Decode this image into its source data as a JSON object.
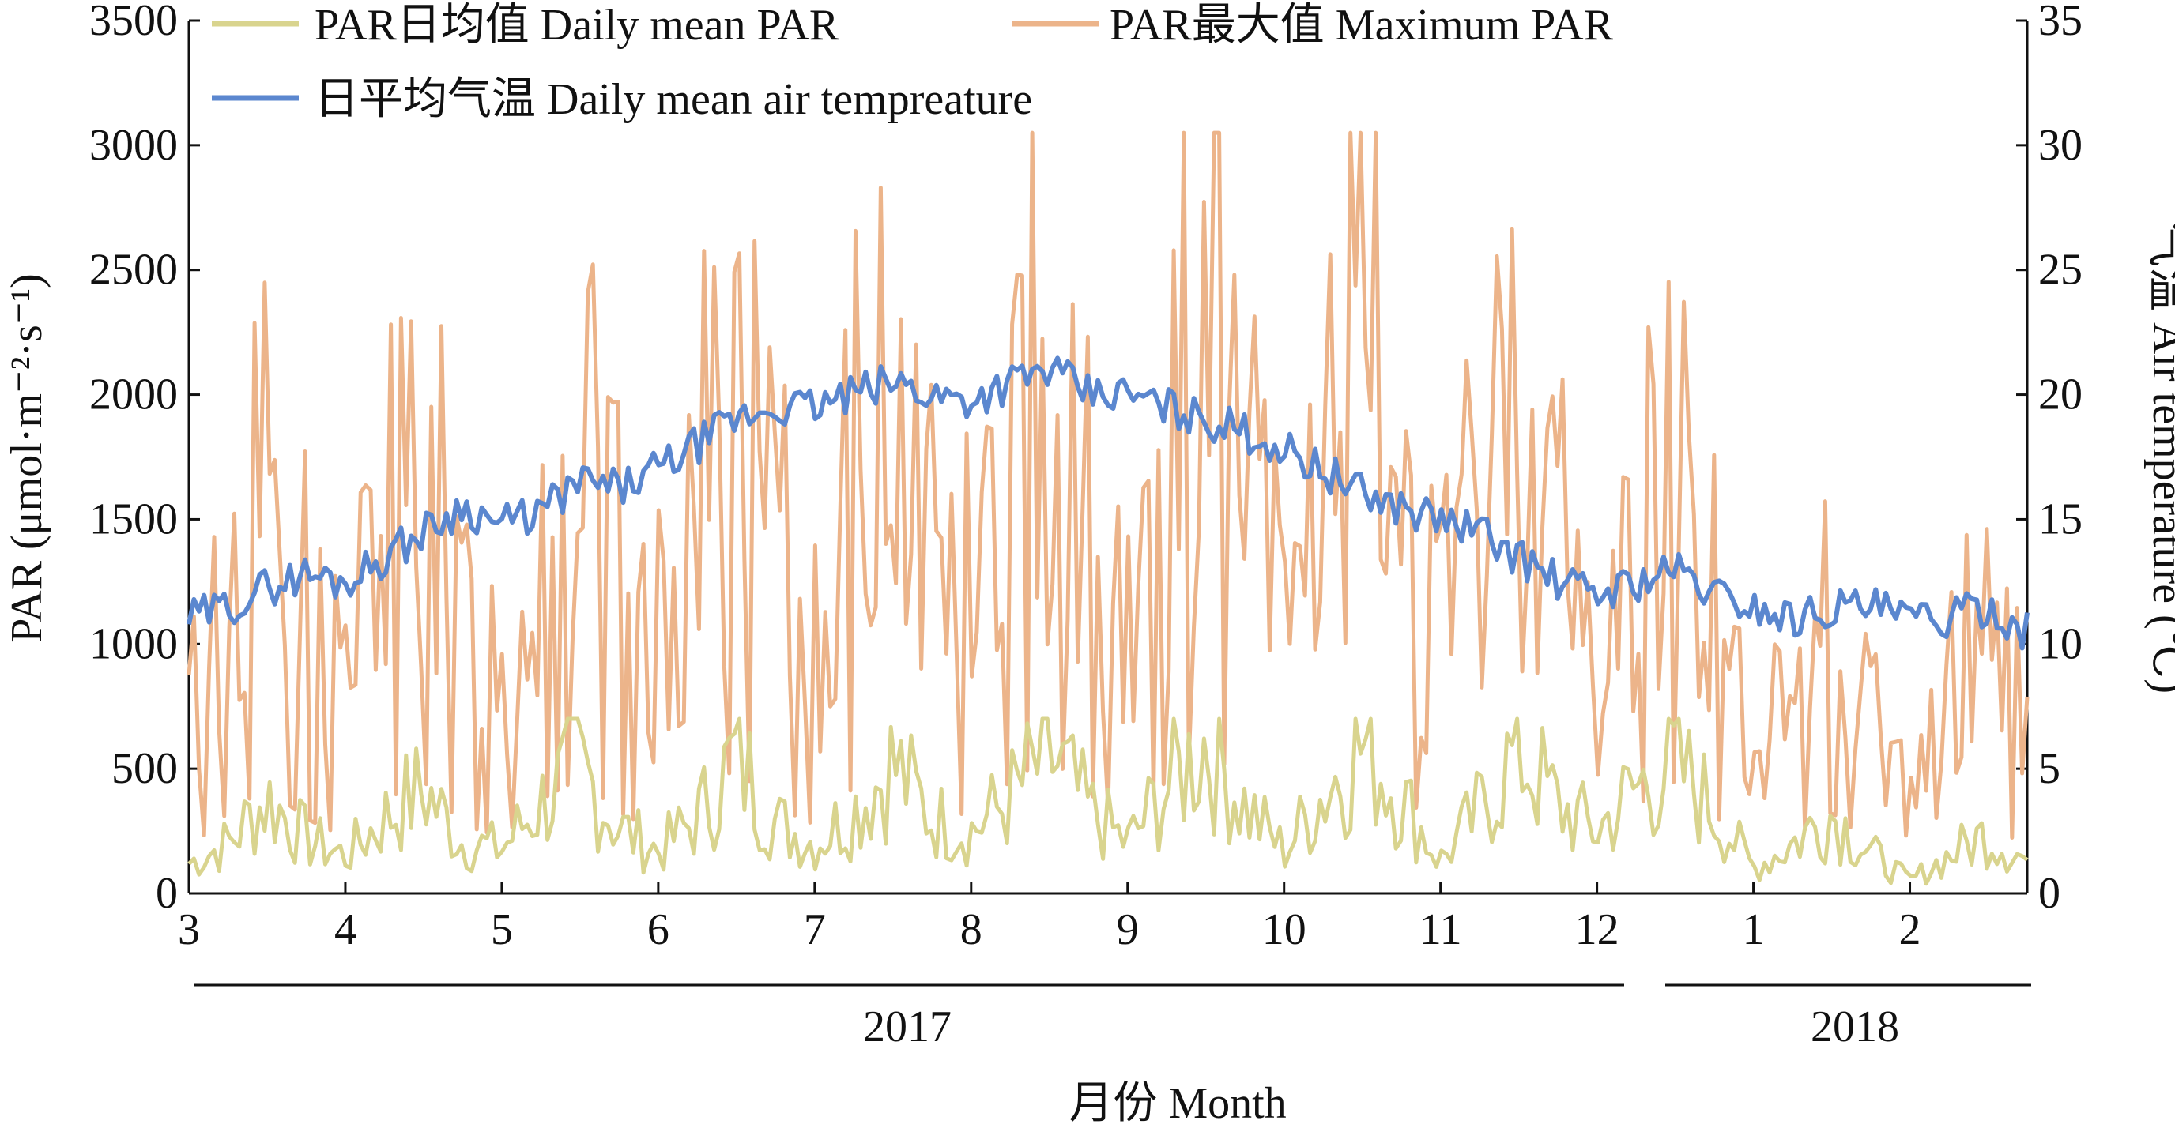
{
  "chart_data": {
    "type": "line",
    "xlabel": "月份 Month",
    "ylabel_left": "PAR (μmol·m⁻²·s⁻¹)",
    "ylabel_right": "气温 Air temperature (℃)",
    "ylim_left": [
      0,
      3500
    ],
    "ylim_right": [
      0,
      35
    ],
    "left_ticks": [
      "0",
      "500",
      "1000",
      "1500",
      "2000",
      "2500",
      "3000",
      "3500"
    ],
    "right_ticks": [
      "0",
      "5",
      "10",
      "15",
      "20",
      "25",
      "30",
      "35"
    ],
    "month_ticks": [
      "3",
      "4",
      "5",
      "6",
      "7",
      "8",
      "9",
      "10",
      "11",
      "12",
      "1",
      "2"
    ],
    "years": [
      "2017",
      "2018"
    ],
    "grid": false,
    "legend_position": "top-left",
    "colors": {
      "daily_mean_par": "#d9d48e",
      "max_par": "#ecb48a",
      "air_temp": "#5b87cf"
    },
    "x_unit": "month index (0 = 1 Mar 2017, 12 = 1 Mar 2018)",
    "series": [
      {
        "name": "PAR日均值 Daily mean PAR",
        "axis": "left",
        "x": [
          0,
          0.25,
          0.5,
          0.75,
          1,
          1.25,
          1.5,
          1.75,
          2,
          2.25,
          2.5,
          2.75,
          3,
          3.25,
          3.5,
          3.75,
          4,
          4.25,
          4.5,
          4.75,
          5,
          5.25,
          5.5,
          5.75,
          6,
          6.25,
          6.5,
          6.75,
          7,
          7.25,
          7.5,
          7.75,
          8,
          8.25,
          8.5,
          8.75,
          9,
          9.25,
          9.5,
          9.75,
          10,
          10.25,
          10.5,
          10.75,
          11,
          11.25,
          11.5,
          11.75
        ],
        "y": [
          120,
          200,
          380,
          220,
          150,
          300,
          420,
          200,
          180,
          360,
          500,
          260,
          170,
          300,
          550,
          280,
          200,
          330,
          520,
          300,
          250,
          380,
          560,
          330,
          200,
          420,
          610,
          350,
          170,
          400,
          600,
          380,
          130,
          330,
          580,
          350,
          250,
          420,
          520,
          330,
          100,
          200,
          320,
          160,
          50,
          150,
          240,
          130
        ]
      },
      {
        "name": "PAR最大值 Maximum PAR",
        "axis": "left",
        "x": [
          0,
          0.25,
          0.5,
          0.75,
          1,
          1.25,
          1.5,
          1.75,
          2,
          2.25,
          2.5,
          2.75,
          3,
          3.25,
          3.5,
          3.75,
          4,
          4.25,
          4.5,
          4.75,
          5,
          5.25,
          5.5,
          5.75,
          6,
          6.25,
          6.5,
          6.75,
          7,
          7.25,
          7.5,
          7.75,
          8,
          8.25,
          8.5,
          8.75,
          9,
          9.25,
          9.5,
          9.75,
          10,
          10.25,
          10.5,
          10.75,
          11,
          11.25,
          11.5,
          11.75
        ],
        "y": [
          700,
          1300,
          1700,
          1200,
          900,
          1500,
          1800,
          1100,
          900,
          1500,
          1850,
          1300,
          1000,
          1600,
          2000,
          1400,
          1100,
          1700,
          2100,
          1500,
          1200,
          1800,
          2200,
          1600,
          1200,
          1800,
          2400,
          1700,
          1100,
          1700,
          2300,
          1600,
          1000,
          1600,
          2000,
          1500,
          800,
          1400,
          1800,
          1300,
          400,
          900,
          1300,
          800,
          300,
          800,
          1200,
          700
        ]
      },
      {
        "name": "日平均气温 Daily mean air tempreature",
        "axis": "right",
        "x": [
          0,
          0.25,
          0.5,
          0.75,
          1,
          1.25,
          1.5,
          1.75,
          2,
          2.25,
          2.5,
          2.75,
          3,
          3.25,
          3.5,
          3.75,
          4,
          4.25,
          4.5,
          4.75,
          5,
          5.25,
          5.5,
          5.75,
          6,
          6.25,
          6.5,
          6.75,
          7,
          7.25,
          7.5,
          7.75,
          8,
          8.25,
          8.5,
          8.75,
          9,
          9.25,
          9.5,
          9.75,
          10,
          10.25,
          10.5,
          10.75,
          11,
          11.25,
          11.5,
          11.75,
          12
        ],
        "y": [
          11,
          11.5,
          12.3,
          12.8,
          12.5,
          13.5,
          14.5,
          15.5,
          14.8,
          15.3,
          16.5,
          16.2,
          17.0,
          18.0,
          19.0,
          19.5,
          19.5,
          20.0,
          20.5,
          20.0,
          19.8,
          20.5,
          21.0,
          20.0,
          20.0,
          19.5,
          19.0,
          18.5,
          17.8,
          17.0,
          16.0,
          15.5,
          15.0,
          14.5,
          13.5,
          12.5,
          12.0,
          12.5,
          13.0,
          12.0,
          11.5,
          11.0,
          11.5,
          11.5,
          11.0,
          11.0,
          11.5,
          10.5,
          11.0
        ]
      }
    ],
    "legend": {
      "daily_mean_par": "PAR日均值 Daily mean PAR",
      "max_par": "PAR最大值 Maximum PAR",
      "air_temp": "日平均气温 Daily mean air tempreature"
    }
  }
}
